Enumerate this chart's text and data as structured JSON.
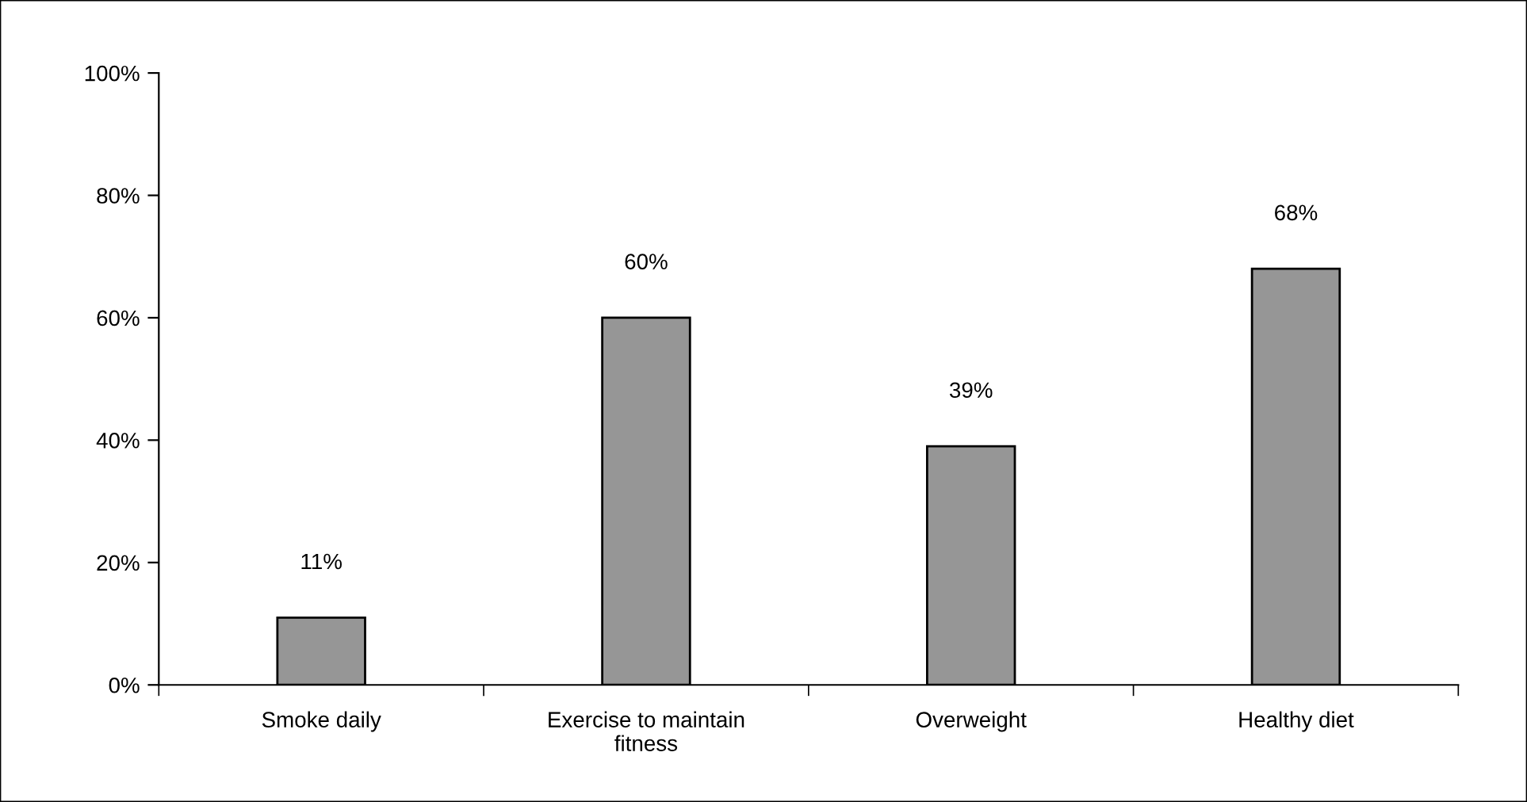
{
  "chart_data": {
    "type": "bar",
    "categories": [
      "Smoke daily",
      "Exercise to maintain\nfitness",
      "Overweight",
      "Healthy diet"
    ],
    "values": [
      11,
      60,
      39,
      68
    ],
    "value_labels": [
      "11%",
      "60%",
      "39%",
      "68%"
    ],
    "color": "#969696",
    "ylim": [
      0,
      100
    ],
    "yticks": [
      {
        "value": 0,
        "label": "0%"
      },
      {
        "value": 20,
        "label": "20%"
      },
      {
        "value": 40,
        "label": "40%"
      },
      {
        "value": 60,
        "label": "60%"
      },
      {
        "value": 80,
        "label": "80%"
      },
      {
        "value": 100,
        "label": "100%"
      }
    ],
    "grid": false
  }
}
